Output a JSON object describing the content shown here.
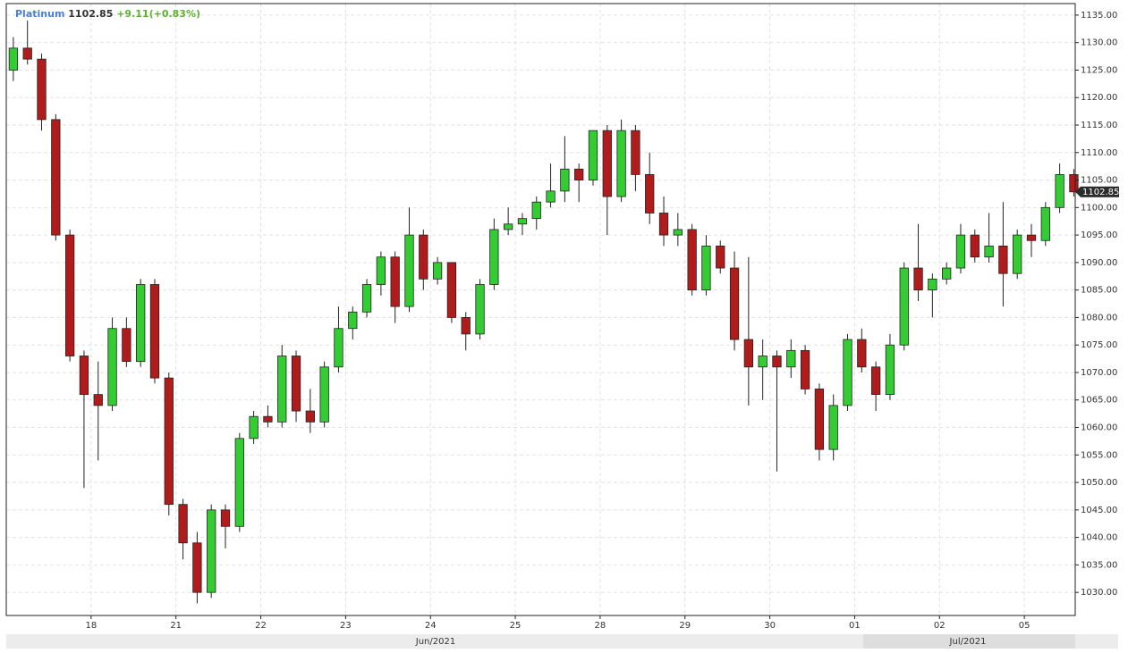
{
  "chart_data": {
    "type": "candlestick",
    "title": "Platinum",
    "last_price": 1102.85,
    "change": "+9.11(+0.83%)",
    "months": [
      "Jun/2021",
      "Jul/2021"
    ],
    "up_color": "#33cc33",
    "down_color": "#b01c1c",
    "grid": true,
    "xlim": [
      0,
      75.6
    ],
    "xticks": [
      {
        "value": 6,
        "label": "18"
      },
      {
        "value": 12,
        "label": "21"
      },
      {
        "value": 18,
        "label": "22"
      },
      {
        "value": 24,
        "label": "23"
      },
      {
        "value": 30,
        "label": "24"
      },
      {
        "value": 36,
        "label": "25"
      },
      {
        "value": 42,
        "label": "28"
      },
      {
        "value": 48,
        "label": "29"
      },
      {
        "value": 54,
        "label": "30"
      },
      {
        "value": 60,
        "label": "01"
      },
      {
        "value": 66,
        "label": "02"
      },
      {
        "value": 72,
        "label": "05"
      }
    ],
    "ylim": [
      1025.8,
      1137.1
    ],
    "yticks": [
      {
        "value": 1030,
        "label": "1030.00"
      },
      {
        "value": 1035,
        "label": "1035.00"
      },
      {
        "value": 1040,
        "label": "1040.00"
      },
      {
        "value": 1045,
        "label": "1045.00"
      },
      {
        "value": 1050,
        "label": "1050.00"
      },
      {
        "value": 1055,
        "label": "1055.00"
      },
      {
        "value": 1060,
        "label": "1060.00"
      },
      {
        "value": 1065,
        "label": "1065.00"
      },
      {
        "value": 1070,
        "label": "1070.00"
      },
      {
        "value": 1075,
        "label": "1075.00"
      },
      {
        "value": 1080,
        "label": "1080.00"
      },
      {
        "value": 1085,
        "label": "1085.00"
      },
      {
        "value": 1090,
        "label": "1090.00"
      },
      {
        "value": 1095,
        "label": "1095.00"
      },
      {
        "value": 1100,
        "label": "1100.00"
      },
      {
        "value": 1105,
        "label": "1105.00"
      },
      {
        "value": 1110,
        "label": "1110.00"
      },
      {
        "value": 1115,
        "label": "1115.00"
      },
      {
        "value": 1120,
        "label": "1120.00"
      },
      {
        "value": 1125,
        "label": "1125.00"
      },
      {
        "value": 1130,
        "label": "1130.00"
      },
      {
        "value": 1135,
        "label": "1135.00"
      }
    ],
    "open": [
      1125,
      1129,
      1127,
      1116,
      1095,
      1073,
      1066,
      1064,
      1078,
      1072,
      1086,
      1069,
      1046,
      1039,
      1030,
      1045,
      1042,
      1058,
      1062,
      1061,
      1073,
      1063,
      1061,
      1071,
      1078,
      1081,
      1086,
      1091,
      1082,
      1095,
      1087,
      1090,
      1080,
      1077,
      1086,
      1096,
      1097,
      1098,
      1101,
      1103,
      1107,
      1105,
      1114,
      1102,
      1114,
      1106,
      1099,
      1095,
      1096,
      1085,
      1093,
      1089,
      1076,
      1071,
      1073,
      1071,
      1074,
      1067,
      1056,
      1064,
      1076,
      1071,
      1066,
      1075,
      1089,
      1085,
      1087,
      1089,
      1095,
      1091,
      1093,
      1088,
      1095,
      1094,
      1100,
      1106
    ],
    "high": [
      1131,
      1134,
      1128,
      1117,
      1096,
      1074,
      1072,
      1080,
      1080,
      1087,
      1087,
      1070,
      1047,
      1041,
      1046,
      1046,
      1059,
      1063,
      1064,
      1075,
      1074,
      1067,
      1072,
      1082,
      1082,
      1087,
      1092,
      1092,
      1100,
      1096,
      1091,
      1090,
      1081,
      1087,
      1098,
      1100,
      1099,
      1102,
      1108,
      1113,
      1108,
      1114,
      1115,
      1116,
      1115,
      1110,
      1102,
      1099,
      1097,
      1095,
      1094,
      1092,
      1091,
      1076,
      1074,
      1076,
      1075,
      1068,
      1066,
      1077,
      1078,
      1072,
      1077,
      1090,
      1097,
      1088,
      1090,
      1097,
      1096,
      1099,
      1101,
      1096,
      1097,
      1101,
      1108,
      1107
    ],
    "low": [
      1123,
      1126,
      1114,
      1094,
      1072,
      1049,
      1054,
      1063,
      1071,
      1071,
      1068,
      1044,
      1036,
      1028,
      1029,
      1038,
      1041,
      1057,
      1060,
      1060,
      1061,
      1059,
      1060,
      1070,
      1076,
      1080,
      1084,
      1079,
      1081,
      1085,
      1086,
      1079,
      1074,
      1076,
      1085,
      1095,
      1095,
      1096,
      1100,
      1101,
      1101,
      1104,
      1095,
      1101,
      1103,
      1097,
      1093,
      1093,
      1084,
      1084,
      1088,
      1074,
      1064,
      1065,
      1052,
      1069,
      1066,
      1054,
      1054,
      1063,
      1070,
      1063,
      1065,
      1074,
      1083,
      1080,
      1086,
      1088,
      1090,
      1090,
      1082,
      1087,
      1091,
      1093,
      1099,
      1102
    ],
    "close": [
      1129,
      1127,
      1116,
      1095,
      1073,
      1066,
      1064,
      1078,
      1072,
      1086,
      1069,
      1046,
      1039,
      1030,
      1045,
      1042,
      1058,
      1062,
      1061,
      1073,
      1063,
      1061,
      1071,
      1078,
      1081,
      1086,
      1091,
      1082,
      1095,
      1087,
      1090,
      1080,
      1077,
      1086,
      1096,
      1097,
      1098,
      1101,
      1103,
      1107,
      1105,
      1114,
      1102,
      1114,
      1106,
      1099,
      1095,
      1096,
      1085,
      1093,
      1089,
      1076,
      1071,
      1073,
      1071,
      1074,
      1067,
      1056,
      1064,
      1076,
      1071,
      1066,
      1075,
      1089,
      1085,
      1087,
      1089,
      1095,
      1091,
      1093,
      1088,
      1095,
      1094,
      1100,
      1106,
      1102.85
    ]
  }
}
